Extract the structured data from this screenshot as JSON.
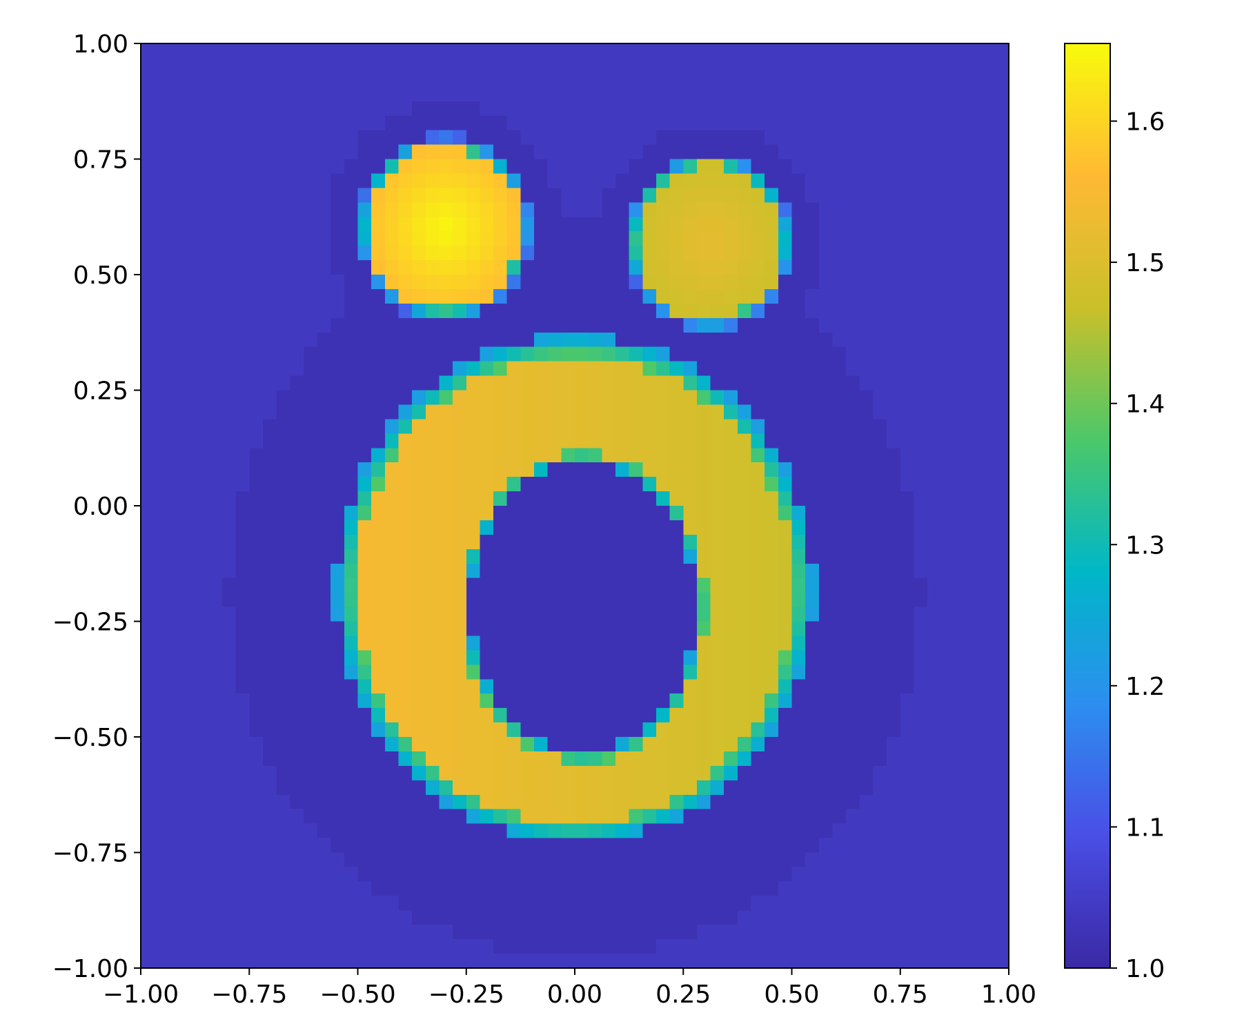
{
  "chart_data": {
    "type": "heatmap",
    "title": "",
    "xlabel": "",
    "ylabel": "",
    "xlim": [
      -1.0,
      1.0
    ],
    "ylim": [
      -1.0,
      1.0
    ],
    "x_ticks": [
      -1.0,
      -0.75,
      -0.5,
      -0.25,
      0.0,
      0.25,
      0.5,
      0.75,
      1.0
    ],
    "x_tick_labels": [
      "−1.00",
      "−0.75",
      "−0.50",
      "−0.25",
      "0.00",
      "0.25",
      "0.50",
      "0.75",
      "1.00"
    ],
    "y_ticks": [
      1.0,
      0.75,
      0.5,
      0.25,
      0.0,
      -0.25,
      -0.5,
      -0.75,
      -1.0
    ],
    "y_tick_labels": [
      "1.00",
      "0.75",
      "0.50",
      "0.25",
      "0.00",
      "−0.25",
      "−0.50",
      "−0.75",
      "−1.00"
    ],
    "grid": false,
    "colorbar": {
      "range": [
        1.0,
        1.655
      ],
      "ticks": [
        1.0,
        1.1,
        1.2,
        1.3,
        1.4,
        1.5,
        1.6
      ],
      "tick_labels": [
        "1.0",
        "1.1",
        "1.2",
        "1.3",
        "1.4",
        "1.5",
        "1.6"
      ],
      "colormap_stops": [
        "#3b2aa6",
        "#4a4fe6",
        "#2d8ff0",
        "#00b7c8",
        "#4cc86a",
        "#c9c02a",
        "#ffb934",
        "#f8fa0d"
      ]
    },
    "grid_resolution": [
      64,
      64
    ],
    "regions": [
      {
        "shape": "ring",
        "description_values": "outer body",
        "cx": 0.0,
        "cy": -0.18,
        "rx": 0.55,
        "ry": 0.55,
        "inner_rx": 0.26,
        "inner_ry": 0.31,
        "inner_cx": 0.02,
        "inner_cy": -0.22,
        "value_left": 1.55,
        "value_right": 1.47
      },
      {
        "shape": "disk",
        "cx": -0.3,
        "cy": 0.6,
        "r": 0.2,
        "value_peak": 1.65,
        "value_edge": 1.56
      },
      {
        "shape": "disk",
        "cx": 0.31,
        "cy": 0.57,
        "r": 0.19,
        "value_peak": 1.52,
        "value_edge": 1.47
      }
    ],
    "background_value": 1.04,
    "halo_value": 1.02
  }
}
